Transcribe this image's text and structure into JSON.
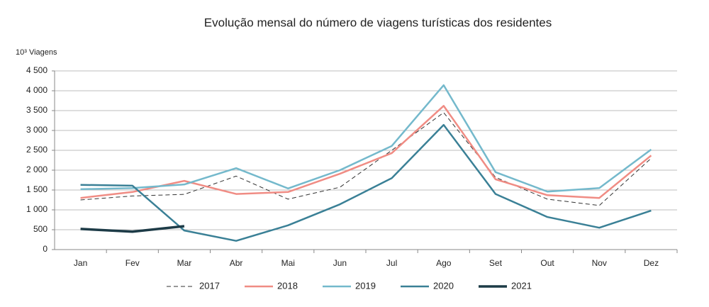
{
  "chart_data": {
    "type": "line",
    "title": "Evolução mensal do número de viagens turísticas dos residentes",
    "y_label": "10³ Viagens",
    "categories": [
      "Jan",
      "Fev",
      "Mar",
      "Abr",
      "Mai",
      "Jun",
      "Jul",
      "Ago",
      "Set",
      "Out",
      "Nov",
      "Dez"
    ],
    "series": [
      {
        "name": "2017",
        "color": "#333333",
        "dashed": true,
        "values": [
          1250,
          1350,
          1390,
          1850,
          1270,
          1570,
          2500,
          3450,
          1820,
          1270,
          1110,
          2300
        ]
      },
      {
        "name": "2018",
        "color": "#f08c84",
        "values": [
          1300,
          1450,
          1730,
          1400,
          1450,
          1910,
          2430,
          3620,
          1770,
          1370,
          1300,
          2370
        ]
      },
      {
        "name": "2019",
        "color": "#74b9cc",
        "values": [
          1520,
          1550,
          1640,
          2050,
          1540,
          2000,
          2610,
          4140,
          1950,
          1460,
          1550,
          2520
        ]
      },
      {
        "name": "2020",
        "color": "#3a8096",
        "values": [
          1630,
          1610,
          480,
          220,
          610,
          1140,
          1800,
          3140,
          1400,
          820,
          550,
          980
        ]
      },
      {
        "name": "2021",
        "color": "#1d3b47",
        "values": [
          520,
          450,
          590,
          null,
          null,
          null,
          null,
          null,
          null,
          null,
          null,
          null
        ]
      }
    ],
    "ylim": [
      0,
      4500
    ],
    "yticks": [
      0,
      500,
      {
        "value": 1000,
        "label": "1 000"
      },
      {
        "value": 1500,
        "label": "1 500"
      },
      {
        "value": 2000,
        "label": "2 000"
      },
      {
        "value": 2500,
        "label": "2 500"
      },
      {
        "value": 3000,
        "label": "3 000"
      },
      {
        "value": 3500,
        "label": "3 500"
      },
      {
        "value": 4000,
        "label": "4 000"
      },
      {
        "value": 4500,
        "label": "4 500"
      }
    ],
    "grid": true,
    "legend": "bottom"
  }
}
